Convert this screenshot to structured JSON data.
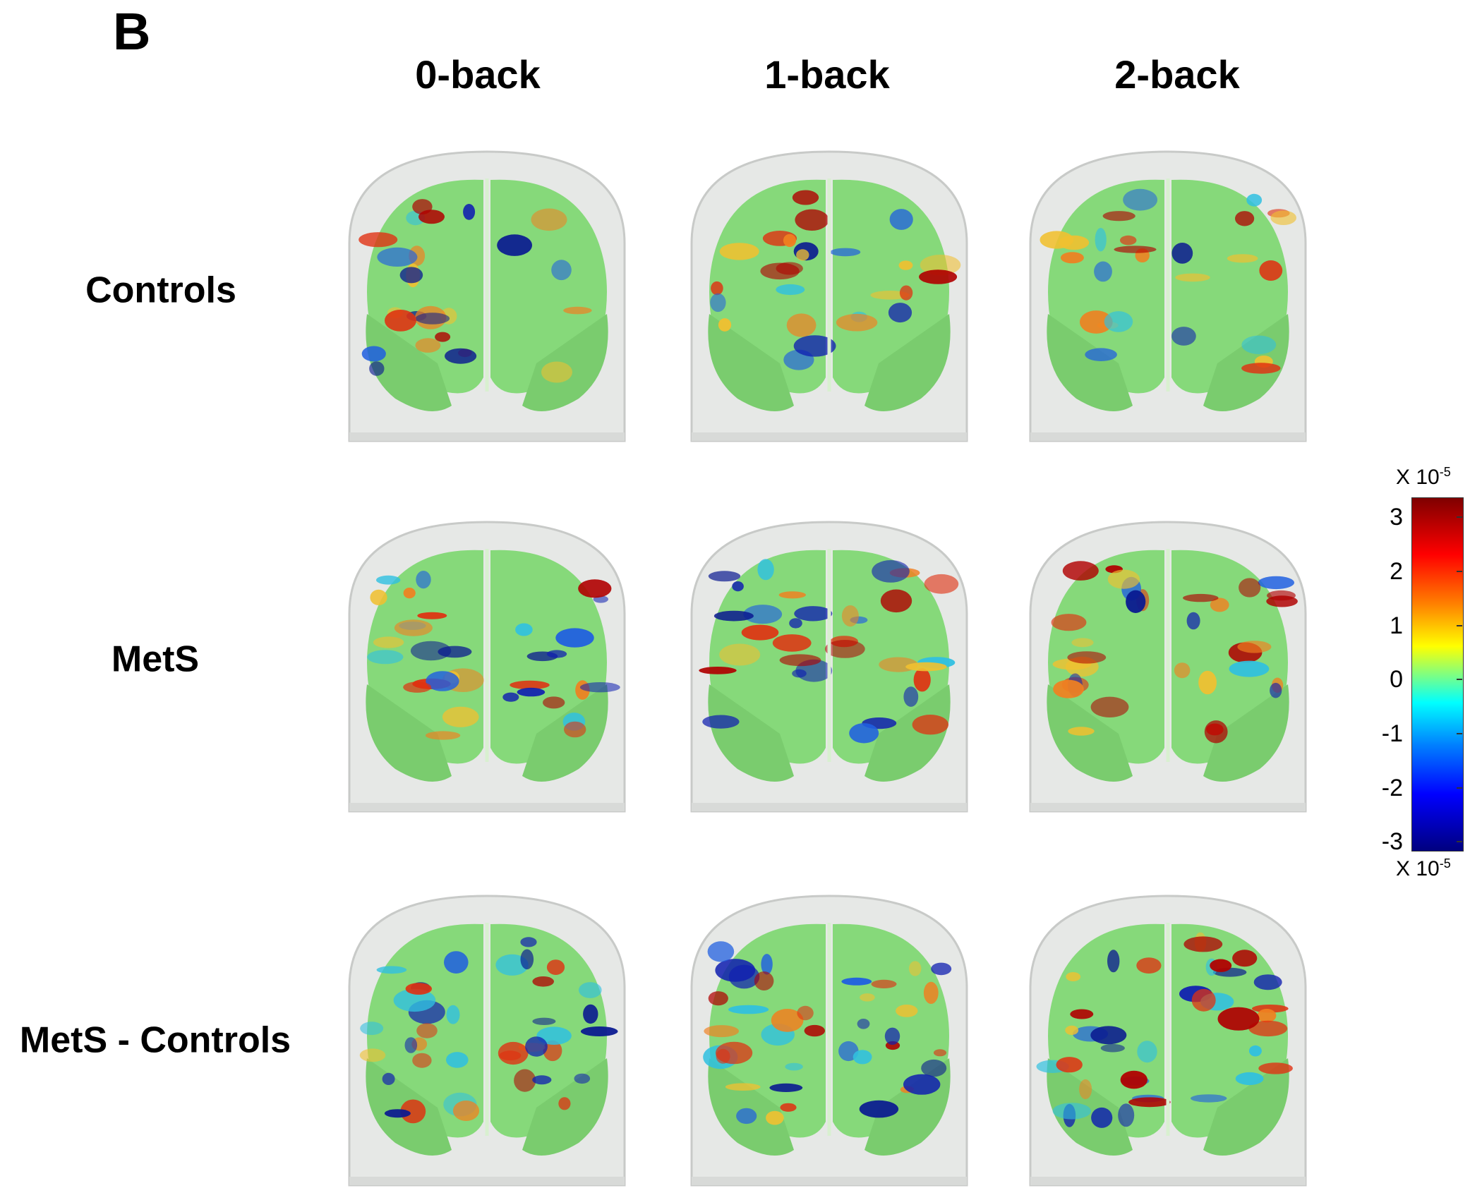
{
  "panel_letter": "B",
  "columns": [
    "0-back",
    "1-back",
    "2-back"
  ],
  "rows": [
    "Controls",
    "MetS",
    "MetS - Controls"
  ],
  "colorbar": {
    "top_label": "X 10",
    "bottom_label": "X 10",
    "exponent": "-5",
    "ticks": [
      "3",
      "2",
      "1",
      "0",
      "-1",
      "-2",
      "-3"
    ],
    "max": 3,
    "min": -3
  },
  "colors": {
    "head": "#e6e8e6",
    "brain": "#86d97a",
    "hot": "#b00000",
    "cold": "#1020b0"
  }
}
